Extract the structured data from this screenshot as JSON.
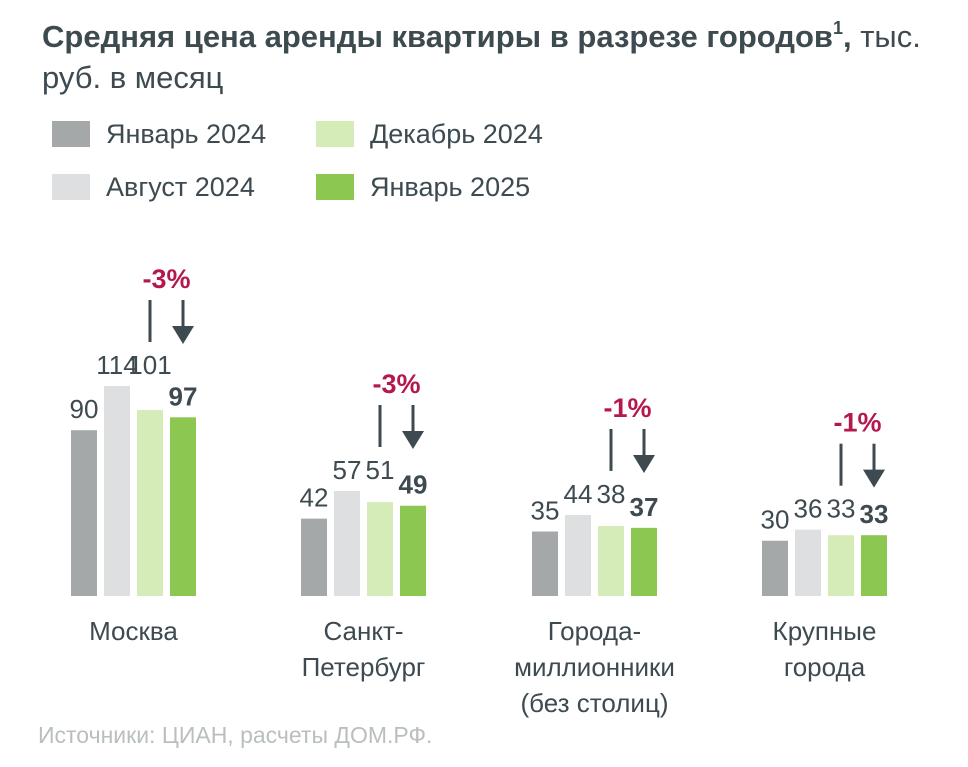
{
  "header": {
    "title_bold": "Средняя цена аренды квартиры в разрезе городов",
    "title_sup": "1",
    "title_comma": ",",
    "title_units": " тыс. руб. в месяц"
  },
  "colors": {
    "jan2024": "#a4a8a8",
    "aug2024": "#dedfe1",
    "dec2024": "#d5ecb9",
    "jan2025": "#8cc751",
    "change": "#b5174f",
    "text": "#3d4a50",
    "arrow": "#3d4a50"
  },
  "chart_data": {
    "type": "bar",
    "title": "Средняя цена аренды квартиры в разрезе городов, тыс. руб. в месяц",
    "ylabel": "тыс. руб. в месяц",
    "ylim": [
      0,
      114
    ],
    "series": [
      {
        "name": "Январь 2024",
        "color": "#a4a8a8",
        "values": [
          90,
          42,
          35,
          30
        ]
      },
      {
        "name": "Август 2024",
        "color": "#dedfe1",
        "values": [
          114,
          57,
          44,
          36
        ]
      },
      {
        "name": "Декабрь 2024",
        "color": "#d5ecb9",
        "values": [
          101,
          51,
          38,
          33
        ]
      },
      {
        "name": "Январь 2025",
        "color": "#8cc751",
        "values": [
          97,
          49,
          37,
          33
        ]
      }
    ],
    "categories": [
      {
        "label_lines": [
          "Москва"
        ],
        "change": "-3%"
      },
      {
        "label_lines": [
          "Санкт-",
          "Петербург"
        ],
        "change": "-3%"
      },
      {
        "label_lines": [
          "Города-",
          "миллионники",
          "(без столиц)"
        ],
        "change": "-1%"
      },
      {
        "label_lines": [
          "Крупные",
          "города"
        ],
        "change": "-1%"
      }
    ]
  },
  "source": "Источники: ЦИАН, расчеты ДОМ.РФ."
}
